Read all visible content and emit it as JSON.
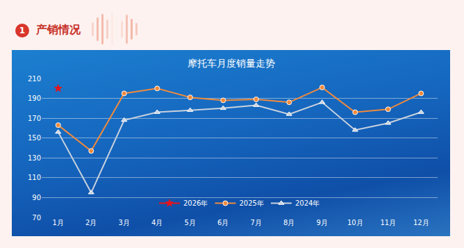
{
  "header": {
    "number": "1",
    "title": "产销情况"
  },
  "chart_data": {
    "type": "line",
    "title": "摩托车月度销量走势",
    "categories": [
      "1月",
      "2月",
      "3月",
      "4月",
      "5月",
      "6月",
      "7月",
      "8月",
      "9月",
      "10月",
      "11月",
      "12月"
    ],
    "series": [
      {
        "name": "2026年",
        "color": "#e8141b",
        "marker": "star",
        "values": [
          200,
          null,
          null,
          null,
          null,
          null,
          null,
          null,
          null,
          null,
          null,
          null
        ]
      },
      {
        "name": "2025年",
        "color": "#f08a3c",
        "marker": "circle",
        "values": [
          163,
          137,
          195,
          200,
          191,
          188,
          189,
          186,
          201,
          176,
          179,
          195
        ]
      },
      {
        "name": "2024年",
        "color": "#c9d2de",
        "marker": "triangle-up",
        "values": [
          156,
          95,
          168,
          176,
          178,
          180,
          183,
          174,
          186,
          158,
          165,
          176
        ]
      }
    ],
    "ylim": [
      70,
      210
    ],
    "yticks": [
      70,
      90,
      110,
      130,
      150,
      170,
      190,
      210
    ],
    "grid": true,
    "legend": "bottom"
  }
}
